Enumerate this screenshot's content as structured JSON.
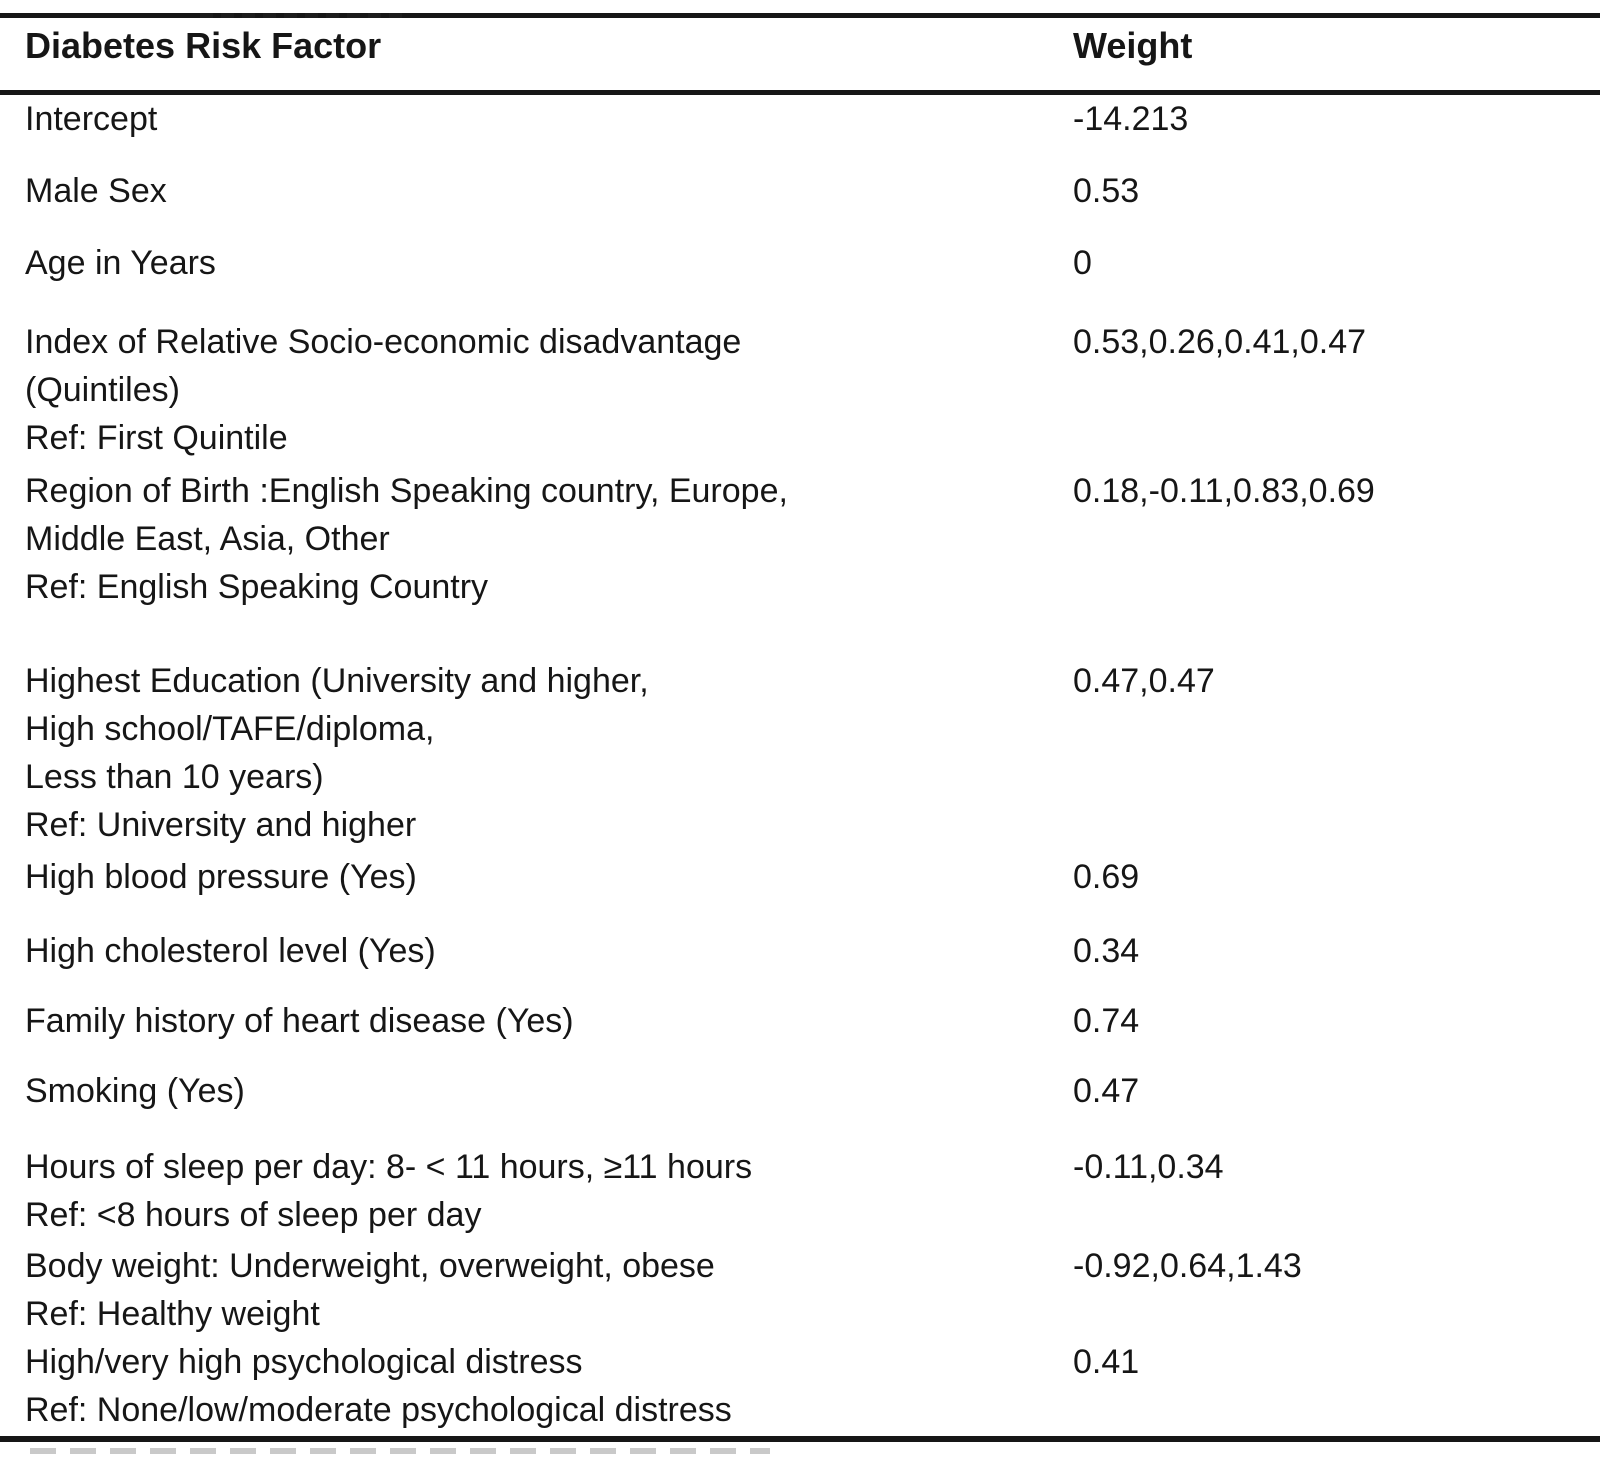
{
  "table": {
    "header": {
      "factor": "Diabetes Risk Factor",
      "weight": "Weight"
    },
    "rows": [
      {
        "factor_lines": [
          "Intercept"
        ],
        "weight": "-14.213"
      },
      {
        "factor_lines": [
          "Male Sex"
        ],
        "weight": "0.53"
      },
      {
        "factor_lines": [
          "Age in Years"
        ],
        "weight": "0"
      },
      {
        "factor_lines": [
          "Index of Relative Socio-economic disadvantage",
          "(Quintiles)",
          "Ref: First Quintile"
        ],
        "weight": "0.53,0.26,0.41,0.47"
      },
      {
        "factor_lines": [
          "Region of Birth :English Speaking country, Europe,",
          "Middle East, Asia, Other",
          "Ref: English Speaking Country"
        ],
        "weight": "0.18,-0.11,0.83,0.69"
      },
      {
        "factor_lines": [
          "Highest Education (University and higher,",
          "High school/TAFE/diploma,",
          "Less than 10 years)",
          "Ref: University and higher"
        ],
        "weight": "0.47,0.47"
      },
      {
        "factor_lines": [
          "High blood pressure (Yes)"
        ],
        "weight": "0.69"
      },
      {
        "factor_lines": [
          "High cholesterol level (Yes)"
        ],
        "weight": "0.34"
      },
      {
        "factor_lines": [
          "Family history of heart disease (Yes)"
        ],
        "weight": "0.74"
      },
      {
        "factor_lines": [
          "Smoking (Yes)"
        ],
        "weight": "0.47"
      },
      {
        "factor_lines": [
          "Hours of sleep per day: 8- < 11 hours, ≥11 hours",
          "Ref: <8 hours of sleep per day"
        ],
        "weight": "-0.11,0.34"
      },
      {
        "factor_lines": [
          "Body weight: Underweight, overweight, obese",
          "Ref: Healthy weight"
        ],
        "weight": "-0.92,0.64,1.43"
      },
      {
        "factor_lines": [
          "High/very high psychological distress",
          "Ref: None/low/moderate psychological distress"
        ],
        "weight": "0.41"
      }
    ]
  },
  "colors": {
    "text": "#161616",
    "rule": "#161616",
    "background": "#ffffff"
  }
}
